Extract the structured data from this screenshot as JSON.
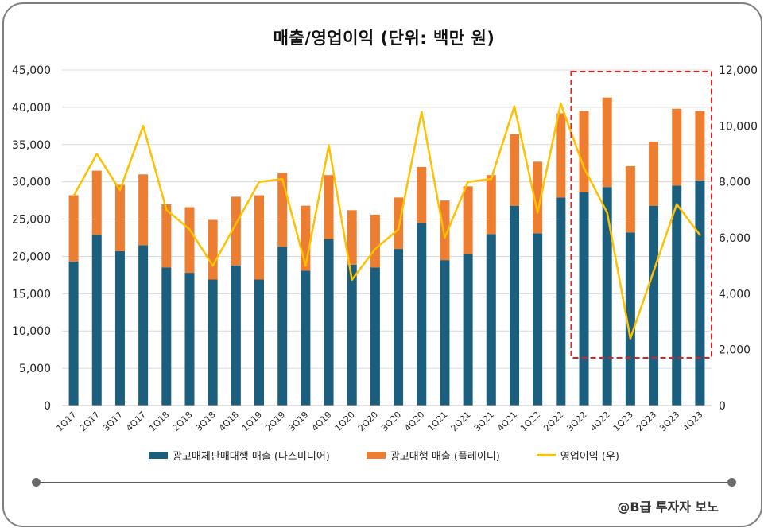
{
  "chart_data": {
    "type": "bar",
    "stacked": true,
    "title": "매출/영업이익 (단위: 백만 원)",
    "categories": [
      "1Q17",
      "2Q17",
      "3Q17",
      "4Q17",
      "1Q18",
      "2Q18",
      "3Q18",
      "4Q18",
      "1Q19",
      "2Q19",
      "3Q19",
      "4Q19",
      "1Q20",
      "2Q20",
      "3Q20",
      "4Q20",
      "1Q21",
      "2Q21",
      "3Q21",
      "4Q21",
      "1Q22",
      "2Q22",
      "3Q22",
      "4Q22",
      "1Q23",
      "2Q23",
      "3Q23",
      "4Q23"
    ],
    "series": [
      {
        "name": "광고매체판매대행 매출 (나스미디어)",
        "axis": "left",
        "kind": "bar",
        "color": "#1b5e7d",
        "values": [
          19300,
          22900,
          20700,
          21500,
          18500,
          17800,
          16900,
          18800,
          16900,
          21300,
          18100,
          22300,
          18900,
          18500,
          21000,
          24500,
          19500,
          20300,
          23000,
          26800,
          23100,
          27900,
          28600,
          29300,
          23200,
          26800,
          29500,
          30200
        ]
      },
      {
        "name": "광고대행 매출 (플레이디)",
        "axis": "left",
        "kind": "bar",
        "color": "#ed7d31",
        "values": [
          8900,
          8600,
          8900,
          9500,
          8500,
          8800,
          8000,
          9200,
          11300,
          9900,
          8700,
          8600,
          7300,
          7100,
          6900,
          7500,
          8000,
          9100,
          7900,
          9600,
          9600,
          11300,
          10900,
          12000,
          8900,
          8600,
          10300,
          9300
        ]
      },
      {
        "name": "영업이익 (우)",
        "axis": "right",
        "kind": "line",
        "color": "#ffc000",
        "values": [
          7500,
          9000,
          7700,
          10000,
          7000,
          6300,
          5000,
          6500,
          8000,
          8100,
          5000,
          9300,
          4500,
          5600,
          6300,
          10500,
          6000,
          8000,
          8100,
          10700,
          6900,
          10800,
          8500,
          6900,
          2400,
          4800,
          7200,
          6100
        ]
      }
    ],
    "ylim_left": [
      0,
      45000
    ],
    "yticks_left": [
      "0",
      "5,000",
      "10,000",
      "15,000",
      "20,000",
      "25,000",
      "30,000",
      "35,000",
      "40,000",
      "45,000"
    ],
    "ylim_right": [
      0,
      12000
    ],
    "yticks_right": [
      "0",
      "2,000",
      "4,000",
      "6,000",
      "8,000",
      "10,000",
      "12,000"
    ],
    "highlight": {
      "from": "3Q22",
      "to": "4Q23",
      "color": "#e02020"
    },
    "legend_position": "bottom"
  },
  "watermark": "@B급 투자자 보노"
}
